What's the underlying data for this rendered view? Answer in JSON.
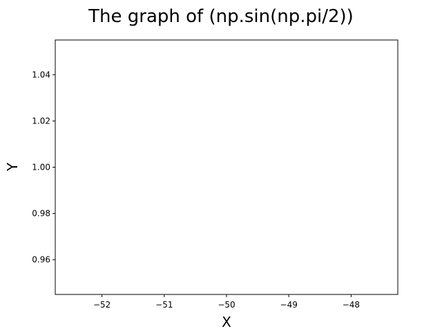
{
  "chart_data": {
    "type": "line",
    "title": "The graph of (np.sin(np.pi/2))",
    "xlabel": "X",
    "ylabel": "Y",
    "xlim": [
      -52.75,
      -47.25
    ],
    "ylim": [
      0.945,
      1.055
    ],
    "xticks": [
      -52,
      -51,
      -50,
      -49,
      -48
    ],
    "xtick_labels": [
      "−52",
      "−51",
      "−50",
      "−49",
      "−48"
    ],
    "yticks": [
      0.96,
      0.98,
      1.0,
      1.02,
      1.04
    ],
    "ytick_labels": [
      "0.96",
      "0.98",
      "1.00",
      "1.02",
      "1.04"
    ],
    "grid": false,
    "series": [
      {
        "x": [],
        "y": [],
        "color": "#1f77b4"
      }
    ]
  }
}
